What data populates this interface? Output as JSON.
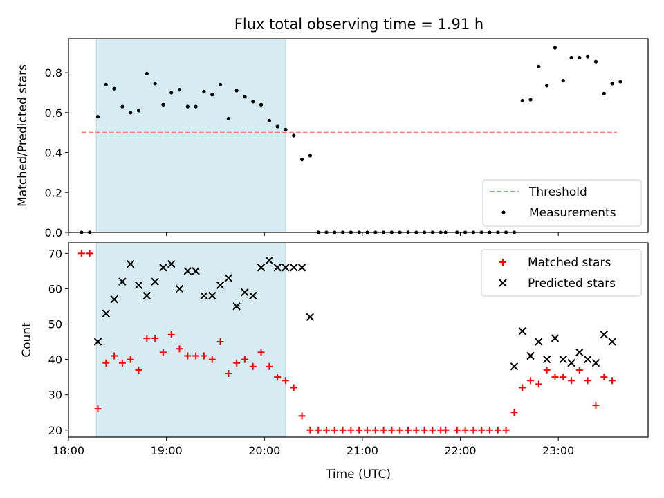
{
  "chart_data": [
    {
      "type": "scatter",
      "title": "Flux total observing time = 1.91 h",
      "xlabel": "",
      "ylabel": "Matched/Predicted stars",
      "xlim": [
        "18:00",
        "23:55"
      ],
      "ylim": [
        0,
        0.97
      ],
      "x_ticks": [
        "18:00",
        "19:00",
        "20:00",
        "21:00",
        "22:00",
        "23:00"
      ],
      "y_ticks": [
        "0.0",
        "0.2",
        "0.4",
        "0.6",
        "0.8"
      ],
      "x_tick_labels_visible": false,
      "shaded_interval": [
        "18:17",
        "20:13"
      ],
      "shade_color": "#add8e6",
      "threshold": {
        "name": "Threshold",
        "value": 0.5,
        "x_range": [
          "18:08",
          "23:36"
        ],
        "color": "#ff7f7f",
        "style": "dashed"
      },
      "legend": {
        "placement": "lower right",
        "entries": [
          "Threshold",
          "Measurements"
        ]
      },
      "series": [
        {
          "name": "Measurements",
          "color": "#000000",
          "marker": "dot",
          "points": [
            [
              "18:08",
              0.0
            ],
            [
              "18:13",
              0.0
            ],
            [
              "18:18",
              0.58
            ],
            [
              "18:23",
              0.74
            ],
            [
              "18:28",
              0.72
            ],
            [
              "18:33",
              0.63
            ],
            [
              "18:38",
              0.6
            ],
            [
              "18:43",
              0.61
            ],
            [
              "18:48",
              0.795
            ],
            [
              "18:53",
              0.745
            ],
            [
              "18:58",
              0.64
            ],
            [
              "19:03",
              0.7
            ],
            [
              "19:08",
              0.715
            ],
            [
              "19:13",
              0.63
            ],
            [
              "19:18",
              0.63
            ],
            [
              "19:23",
              0.705
            ],
            [
              "19:28",
              0.69
            ],
            [
              "19:33",
              0.74
            ],
            [
              "19:38",
              0.57
            ],
            [
              "19:43",
              0.71
            ],
            [
              "19:48",
              0.68
            ],
            [
              "19:53",
              0.655
            ],
            [
              "19:58",
              0.64
            ],
            [
              "20:03",
              0.56
            ],
            [
              "20:08",
              0.53
            ],
            [
              "20:13",
              0.515
            ],
            [
              "20:18",
              0.485
            ],
            [
              "20:23",
              0.365
            ],
            [
              "20:28",
              0.385
            ],
            [
              "20:33",
              0.0
            ],
            [
              "20:38",
              0.0
            ],
            [
              "20:43",
              0.0
            ],
            [
              "20:48",
              0.0
            ],
            [
              "20:53",
              0.0
            ],
            [
              "20:58",
              0.0
            ],
            [
              "21:03",
              0.0
            ],
            [
              "21:08",
              0.0
            ],
            [
              "21:13",
              0.0
            ],
            [
              "21:18",
              0.0
            ],
            [
              "21:23",
              0.0
            ],
            [
              "21:28",
              0.0
            ],
            [
              "21:33",
              0.0
            ],
            [
              "21:38",
              0.0
            ],
            [
              "21:43",
              0.0
            ],
            [
              "21:48",
              0.0
            ],
            [
              "21:51",
              0.0
            ],
            [
              "21:58",
              0.0
            ],
            [
              "22:03",
              0.0
            ],
            [
              "22:08",
              0.0
            ],
            [
              "22:13",
              0.0
            ],
            [
              "22:18",
              0.0
            ],
            [
              "22:23",
              0.0
            ],
            [
              "22:28",
              0.0
            ],
            [
              "22:33",
              0.0
            ],
            [
              "22:38",
              0.66
            ],
            [
              "22:43",
              0.665
            ],
            [
              "22:48",
              0.83
            ],
            [
              "22:53",
              0.735
            ],
            [
              "22:58",
              0.925
            ],
            [
              "23:03",
              0.76
            ],
            [
              "23:08",
              0.875
            ],
            [
              "23:13",
              0.875
            ],
            [
              "23:18",
              0.88
            ],
            [
              "23:23",
              0.855
            ],
            [
              "23:28",
              0.695
            ],
            [
              "23:33",
              0.745
            ],
            [
              "23:38",
              0.755
            ]
          ]
        }
      ]
    },
    {
      "type": "scatter",
      "title": "",
      "xlabel": "Time (UTC)",
      "ylabel": "Count",
      "xlim": [
        "18:00",
        "23:55"
      ],
      "ylim": [
        18,
        73
      ],
      "x_ticks": [
        "18:00",
        "19:00",
        "20:00",
        "21:00",
        "22:00",
        "23:00"
      ],
      "y_ticks": [
        "20",
        "30",
        "40",
        "50",
        "60",
        "70"
      ],
      "shaded_interval": [
        "18:17",
        "20:13"
      ],
      "shade_color": "#add8e6",
      "legend": {
        "placement": "upper right",
        "entries": [
          "Matched stars",
          "Predicted stars"
        ]
      },
      "series": [
        {
          "name": "Matched stars",
          "color": "#ff0000",
          "marker": "plus",
          "points": [
            [
              "18:08",
              70
            ],
            [
              "18:13",
              70
            ],
            [
              "18:18",
              26
            ],
            [
              "18:23",
              39
            ],
            [
              "18:28",
              41
            ],
            [
              "18:33",
              39
            ],
            [
              "18:38",
              40
            ],
            [
              "18:43",
              37
            ],
            [
              "18:48",
              46
            ],
            [
              "18:53",
              46
            ],
            [
              "18:58",
              42
            ],
            [
              "19:03",
              47
            ],
            [
              "19:08",
              43
            ],
            [
              "19:13",
              41
            ],
            [
              "19:18",
              41
            ],
            [
              "19:23",
              41
            ],
            [
              "19:28",
              40
            ],
            [
              "19:33",
              45
            ],
            [
              "19:38",
              36
            ],
            [
              "19:43",
              39
            ],
            [
              "19:48",
              40
            ],
            [
              "19:53",
              38
            ],
            [
              "19:58",
              42
            ],
            [
              "20:03",
              38
            ],
            [
              "20:08",
              35
            ],
            [
              "20:13",
              34
            ],
            [
              "20:18",
              32
            ],
            [
              "20:23",
              24
            ],
            [
              "20:28",
              20
            ],
            [
              "20:33",
              20
            ],
            [
              "20:38",
              20
            ],
            [
              "20:43",
              20
            ],
            [
              "20:48",
              20
            ],
            [
              "20:53",
              20
            ],
            [
              "20:58",
              20
            ],
            [
              "21:03",
              20
            ],
            [
              "21:08",
              20
            ],
            [
              "21:13",
              20
            ],
            [
              "21:18",
              20
            ],
            [
              "21:23",
              20
            ],
            [
              "21:28",
              20
            ],
            [
              "21:33",
              20
            ],
            [
              "21:38",
              20
            ],
            [
              "21:43",
              20
            ],
            [
              "21:48",
              20
            ],
            [
              "21:51",
              20
            ],
            [
              "21:58",
              20
            ],
            [
              "22:03",
              20
            ],
            [
              "22:08",
              20
            ],
            [
              "22:13",
              20
            ],
            [
              "22:18",
              20
            ],
            [
              "22:23",
              20
            ],
            [
              "22:28",
              20
            ],
            [
              "22:33",
              25
            ],
            [
              "22:38",
              32
            ],
            [
              "22:43",
              34
            ],
            [
              "22:48",
              33
            ],
            [
              "22:53",
              37
            ],
            [
              "22:58",
              35
            ],
            [
              "23:03",
              35
            ],
            [
              "23:08",
              34
            ],
            [
              "23:13",
              37
            ],
            [
              "23:18",
              34
            ],
            [
              "23:23",
              27
            ],
            [
              "23:28",
              35
            ],
            [
              "23:33",
              34
            ]
          ]
        },
        {
          "name": "Predicted stars",
          "color": "#000000",
          "marker": "x",
          "points": [
            [
              "18:18",
              45
            ],
            [
              "18:23",
              53
            ],
            [
              "18:28",
              57
            ],
            [
              "18:33",
              62
            ],
            [
              "18:38",
              67
            ],
            [
              "18:43",
              61
            ],
            [
              "18:48",
              58
            ],
            [
              "18:53",
              62
            ],
            [
              "18:58",
              66
            ],
            [
              "19:03",
              67
            ],
            [
              "19:08",
              60
            ],
            [
              "19:13",
              65
            ],
            [
              "19:18",
              65
            ],
            [
              "19:23",
              58
            ],
            [
              "19:28",
              58
            ],
            [
              "19:33",
              61
            ],
            [
              "19:38",
              63
            ],
            [
              "19:43",
              55
            ],
            [
              "19:48",
              59
            ],
            [
              "19:53",
              58
            ],
            [
              "19:58",
              66
            ],
            [
              "20:03",
              68
            ],
            [
              "20:08",
              66
            ],
            [
              "20:13",
              66
            ],
            [
              "20:18",
              66
            ],
            [
              "20:23",
              66
            ],
            [
              "20:28",
              52
            ],
            [
              "22:33",
              38
            ],
            [
              "22:38",
              48
            ],
            [
              "22:43",
              41
            ],
            [
              "22:48",
              45
            ],
            [
              "22:53",
              40
            ],
            [
              "22:58",
              46
            ],
            [
              "23:03",
              40
            ],
            [
              "23:08",
              39
            ],
            [
              "23:13",
              42
            ],
            [
              "23:18",
              40
            ],
            [
              "23:23",
              39
            ],
            [
              "23:28",
              47
            ],
            [
              "23:33",
              45
            ]
          ]
        }
      ]
    }
  ]
}
